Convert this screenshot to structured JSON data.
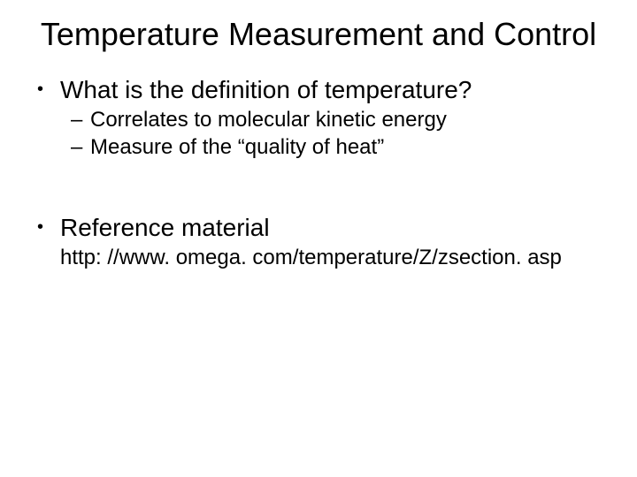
{
  "slide": {
    "title": "Temperature Measurement and Control",
    "title_fontsize": 36,
    "body_fontsize_l1": 28,
    "body_fontsize_l2": 24,
    "background_color": "#ffffff",
    "text_color": "#000000",
    "font_family": "Arial",
    "bullets": [
      {
        "level": 1,
        "marker": "•",
        "text": "What is the definition of temperature?"
      },
      {
        "level": 2,
        "marker": "–",
        "text": "Correlates to molecular kinetic energy"
      },
      {
        "level": 2,
        "marker": "–",
        "text": "Measure of the “quality of heat”"
      },
      {
        "level": 1,
        "marker": "•",
        "text": "Reference material"
      }
    ],
    "reference_url": "http: //www. omega. com/temperature/Z/zsection. asp"
  }
}
